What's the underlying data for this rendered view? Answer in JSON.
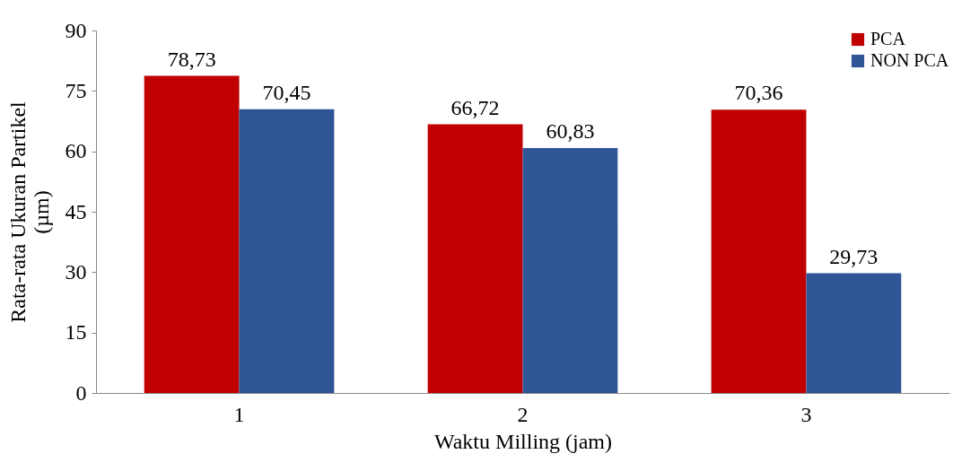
{
  "chart_data": {
    "type": "bar",
    "xlabel": "Waktu Milling (jam)",
    "ylabel": "Rata-rata Ukuran Partikel (µm)",
    "categories": [
      "1",
      "2",
      "3"
    ],
    "series": [
      {
        "name": "PCA",
        "color": "#c00000",
        "values": [
          78.73,
          66.72,
          70.36
        ],
        "value_labels": [
          "78,73",
          "66,72",
          "70,36"
        ]
      },
      {
        "name": "NON PCA",
        "color": "#2f5597",
        "values": [
          70.45,
          60.83,
          29.73
        ],
        "value_labels": [
          "70,45",
          "60,83",
          "29,73"
        ]
      }
    ],
    "ylim": [
      0,
      90
    ],
    "yticks": [
      0,
      15,
      30,
      45,
      60,
      75,
      90
    ],
    "grid": false,
    "legend": "top right"
  }
}
